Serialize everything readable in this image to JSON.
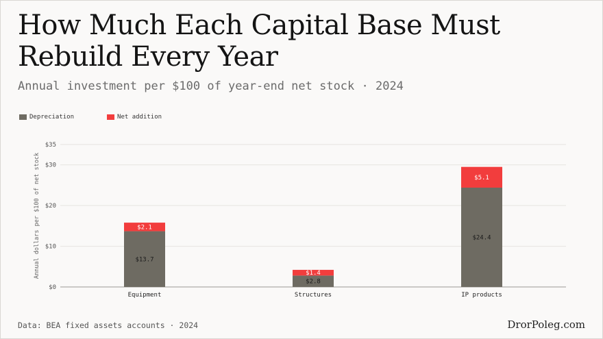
{
  "header": {
    "title": "How Much Each Capital Base Must Rebuild Every Year",
    "subtitle": "Annual investment per $100 of year-end net stock · 2024"
  },
  "footer": {
    "source": "Data: BEA fixed assets accounts · 2024",
    "brand": "DrorPoleg.com"
  },
  "colors": {
    "depreciation": "#6e6b62",
    "net_addition": "#f23d3d"
  },
  "chart_data": {
    "type": "bar",
    "stacked": true,
    "title": "How Much Each Capital Base Must Rebuild Every Year",
    "subtitle": "Annual investment per $100 of year-end net stock · 2024",
    "xlabel": "",
    "ylabel": "Annual dollars per $100 of net stock",
    "ylim": [
      0,
      35
    ],
    "yticks": [
      0,
      10,
      20,
      30,
      35
    ],
    "ytick_labels": [
      "$0",
      "$10",
      "$20",
      "$30",
      "$35"
    ],
    "grid": true,
    "legend_position": "top-left",
    "categories": [
      "Equipment",
      "Structures",
      "IP products"
    ],
    "series": [
      {
        "name": "Depreciation",
        "values": [
          13.7,
          2.8,
          24.4
        ],
        "labels": [
          "$13.7",
          "$2.8",
          "$24.4"
        ]
      },
      {
        "name": "Net addition",
        "values": [
          2.1,
          1.4,
          5.1
        ],
        "labels": [
          "$2.1",
          "$1.4",
          "$5.1"
        ]
      }
    ]
  }
}
